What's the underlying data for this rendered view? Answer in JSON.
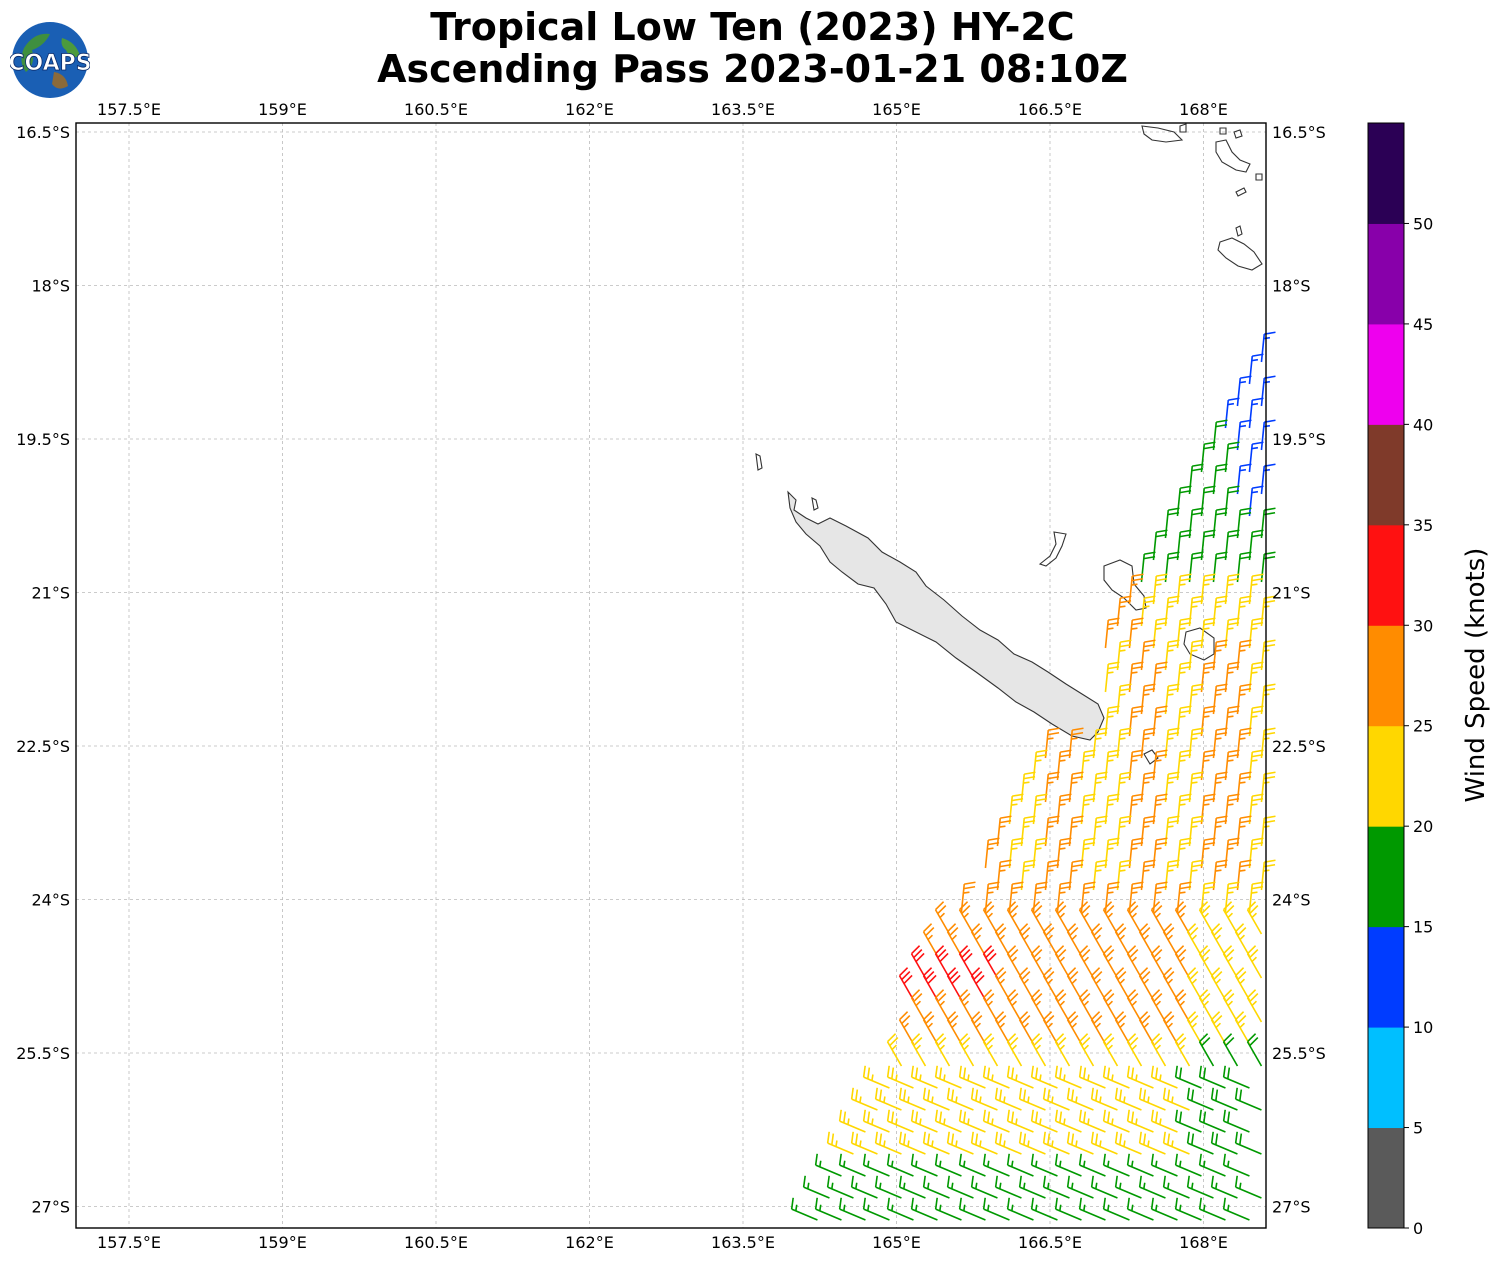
{
  "title": {
    "line1": "Tropical Low Ten (2023) HY-2C",
    "line2": "Ascending Pass 2023-01-21 08:10Z"
  },
  "logo": {
    "text": "COAPS",
    "icon": "globe-logo-icon"
  },
  "map": {
    "lon_ticks": [
      "157.5°E",
      "159°E",
      "160.5°E",
      "162°E",
      "163.5°E",
      "165°E",
      "166.5°E",
      "168°E"
    ],
    "lat_ticks": [
      "16.5°S",
      "18°S",
      "19.5°S",
      "21°S",
      "22.5°S",
      "24°S",
      "25.5°S",
      "27°S"
    ],
    "lon_range": [
      157,
      168.6
    ],
    "lat_range": [
      16.4,
      27.2
    ],
    "gridlines": true,
    "land": "New Caledonia and Loyalty Islands (grey)"
  },
  "colorbar": {
    "label": "Wind Speed (knots)",
    "ticks": [
      "0",
      "5",
      "10",
      "15",
      "20",
      "25",
      "30",
      "35",
      "40",
      "45",
      "50"
    ],
    "colors": [
      "#5a5a5a",
      "#00bfff",
      "#003cff",
      "#009900",
      "#ffd700",
      "#ff8c00",
      "#ff1111",
      "#7f3a2a",
      "#ee00ee",
      "#8800aa",
      "#2b0055"
    ]
  },
  "chart_data": {
    "type": "wind-barbs",
    "units": "knots",
    "groups": [
      {
        "speed_range": "10-15",
        "color": "#003cff",
        "region": "NE, 18.3°S-20.2°S"
      },
      {
        "speed_range": "15-20",
        "color": "#009900",
        "region": "19.5°S-21.2°S and SE corner 25.7°S-27°S"
      },
      {
        "speed_range": "20-25",
        "color": "#ffd700",
        "region": "21°S-27.2°S"
      },
      {
        "speed_range": "25-30",
        "color": "#ff8c00",
        "region": "21.3°S-26.3°S"
      },
      {
        "speed_range": "30-35",
        "color": "#ff1111",
        "region": "~25°S, 165°E-166°E"
      }
    ]
  }
}
